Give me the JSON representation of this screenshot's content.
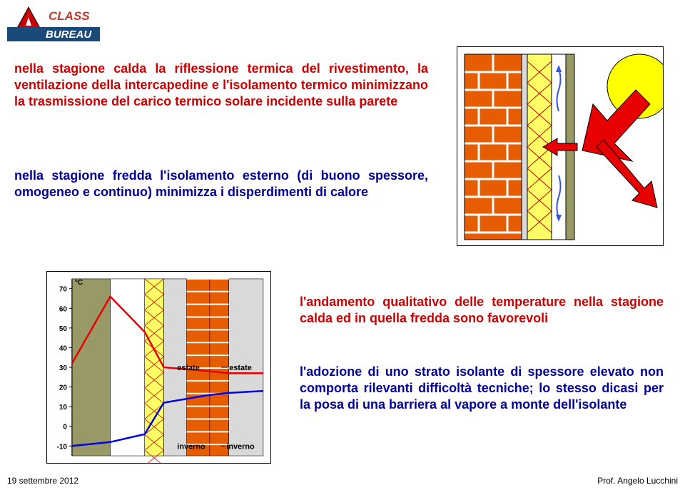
{
  "logo": {
    "top_text": "CLASS",
    "bottom_text": "BUREAU",
    "a_color": "#cc0000",
    "bar_color": "#194a7a",
    "text_color": "#c0392b"
  },
  "paragraphs": {
    "p1": "nella stagione calda la riflessione termica del rivestimento, la ventilazione della intercapedine e l'isolamento termico minimizzano la trasmissione del carico termico solare incidente sulla parete",
    "p2": "nella stagione fredda l'isolamento esterno (di buono spessore, omogeneo e continuo) minimizza i disperdimenti di calore",
    "p3": "l'andamento qualitativo delle temperature nella stagione calda ed in quella fredda sono favorevoli",
    "p4": "l'adozione di uno strato isolante di spessore elevato non comporta rilevanti difficoltà tecniche; lo stesso dicasi per la posa di una barriera al vapore a monte dell'isolante",
    "p1_color": "#cc0000",
    "p2_color": "#000099",
    "p3_color": "#cc0000",
    "p4_color": "#000099",
    "font_size": 18
  },
  "wall_diagram": {
    "sun_color": "#ffff00",
    "arrow_color": "#e60000",
    "brick_color": "#e65c00",
    "brick_dark": "#b34700",
    "mortar_color": "#e6e6e6",
    "insulation_color": "#ffff66",
    "insulation_hatch": "#cc0000",
    "cladding_color": "#999966",
    "airflow_color": "#3355dd"
  },
  "temp_chart": {
    "y_label": "°C",
    "y_ticks": [
      -10,
      0,
      10,
      20,
      30,
      40,
      50,
      60,
      70
    ],
    "ylim": [
      -15,
      75
    ],
    "series": {
      "estate": {
        "label": "estate",
        "label_y": 30,
        "color": "#e60000",
        "points": [
          [
            0,
            32
          ],
          [
            20,
            66
          ],
          [
            38,
            48
          ],
          [
            48,
            30
          ],
          [
            60,
            29
          ],
          [
            72,
            28
          ],
          [
            82,
            27
          ],
          [
            100,
            27
          ]
        ]
      },
      "inverno": {
        "label": "inverno",
        "label_y": -10,
        "color": "#0000e6",
        "points": [
          [
            0,
            -10
          ],
          [
            20,
            -8
          ],
          [
            38,
            -4
          ],
          [
            48,
            12
          ],
          [
            60,
            14
          ],
          [
            72,
            16
          ],
          [
            82,
            17
          ],
          [
            100,
            18
          ]
        ]
      }
    },
    "font_size": 10,
    "axis_color": "#000000",
    "tick_color": "#000000",
    "brick_color": "#e65c00",
    "insulation_color": "#ffff66",
    "cladding_color": "#999966",
    "layer_edges_pct": [
      0,
      20,
      38,
      48,
      60,
      72,
      82,
      100
    ]
  },
  "footer": {
    "left": "19 settembre 2012",
    "right": "Prof. Angelo Lucchini"
  }
}
